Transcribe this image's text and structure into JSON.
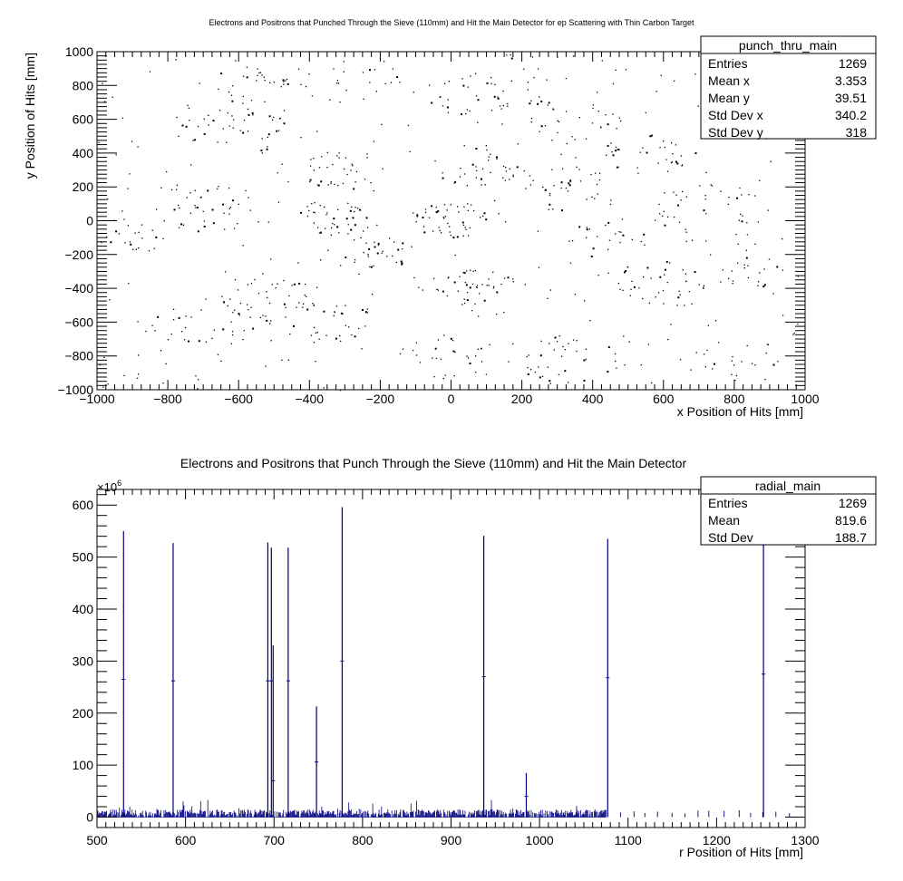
{
  "chart_data": [
    {
      "type": "scatter",
      "title": "Electrons and Positrons that Punched Through the Sieve (110mm) and Hit the Main Detector for ep Scattering with Thin Carbon Target",
      "xlabel": "x Position of Hits [mm]",
      "ylabel": "y Position of Hits [mm]",
      "xlim": [
        -1000,
        1000
      ],
      "ylim": [
        -1000,
        1000
      ],
      "x_ticks": [
        "-1000",
        "-800",
        "-600",
        "-400",
        "-200",
        "0",
        "200",
        "400",
        "600",
        "800",
        "1000"
      ],
      "y_ticks": [
        "-1000",
        "-800",
        "-600",
        "-400",
        "-200",
        "0",
        "200",
        "400",
        "600",
        "800",
        "1000"
      ],
      "grid": false,
      "stats": {
        "name": "punch_thru_main",
        "rows": [
          {
            "label": "Entries",
            "value": "1269"
          },
          {
            "label": "Mean x",
            "value": "3.353"
          },
          {
            "label": "Mean y",
            "value": "39.51"
          },
          {
            "label": "Std Dev x",
            "value": "340.2"
          },
          {
            "label": "Std Dev y",
            "value": "318"
          }
        ]
      },
      "clusters": [
        {
          "cx": -300,
          "cy": 300,
          "r": 120,
          "n": 35
        },
        {
          "cx": -330,
          "cy": 20,
          "r": 110,
          "n": 40
        },
        {
          "cx": 0,
          "cy": 10,
          "r": 110,
          "n": 45
        },
        {
          "cx": 60,
          "cy": -370,
          "r": 120,
          "n": 40
        },
        {
          "cx": 80,
          "cy": 330,
          "r": 130,
          "n": 35
        },
        {
          "cx": 60,
          "cy": 760,
          "r": 140,
          "n": 30
        },
        {
          "cx": -520,
          "cy": -450,
          "r": 140,
          "n": 40
        },
        {
          "cx": -700,
          "cy": 80,
          "r": 140,
          "n": 35
        },
        {
          "cx": -600,
          "cy": 560,
          "r": 170,
          "n": 40
        },
        {
          "cx": -560,
          "cy": 800,
          "r": 120,
          "n": 25
        },
        {
          "cx": 330,
          "cy": 600,
          "r": 150,
          "n": 30
        },
        {
          "cx": 330,
          "cy": -820,
          "r": 150,
          "n": 35
        },
        {
          "cx": 330,
          "cy": 180,
          "r": 150,
          "n": 30
        },
        {
          "cx": 560,
          "cy": 410,
          "r": 130,
          "n": 30
        },
        {
          "cx": 600,
          "cy": -380,
          "r": 150,
          "n": 40
        },
        {
          "cx": 730,
          "cy": 50,
          "r": 170,
          "n": 35
        },
        {
          "cx": -220,
          "cy": -200,
          "r": 120,
          "n": 30
        },
        {
          "cx": -350,
          "cy": -600,
          "r": 140,
          "n": 30
        },
        {
          "cx": -700,
          "cy": -600,
          "r": 150,
          "n": 30
        },
        {
          "cx": -900,
          "cy": -100,
          "r": 90,
          "n": 20
        },
        {
          "cx": 850,
          "cy": -300,
          "r": 100,
          "n": 20
        },
        {
          "cx": 0,
          "cy": -800,
          "r": 150,
          "n": 25
        },
        {
          "cx": -300,
          "cy": 850,
          "r": 150,
          "n": 20
        },
        {
          "cx": 450,
          "cy": -100,
          "r": 120,
          "n": 20
        },
        {
          "cx": 200,
          "cy": 900,
          "r": 150,
          "n": 15
        },
        {
          "cx": 800,
          "cy": 700,
          "r": 120,
          "n": 15
        },
        {
          "cx": 800,
          "cy": -800,
          "r": 120,
          "n": 15
        }
      ]
    },
    {
      "type": "bar",
      "title": "Electrons and Positrons that Punch Through the Sieve (110mm) and Hit the Main Detector",
      "xlabel": "r Position of Hits [mm]",
      "ylabel": "",
      "y_multiplier": "×10",
      "y_multiplier_exp": "6",
      "xlim": [
        500,
        1300
      ],
      "ylim": [
        -20,
        630
      ],
      "x_ticks": [
        "500",
        "600",
        "700",
        "800",
        "900",
        "1000",
        "1100",
        "1200",
        "1300"
      ],
      "y_ticks": [
        "0",
        "100",
        "200",
        "300",
        "400",
        "500",
        "600"
      ],
      "color": "#000080",
      "grid": false,
      "stats": {
        "name": "radial_main",
        "rows": [
          {
            "label": "Entries",
            "value": "1269"
          },
          {
            "label": "Mean",
            "value": "819.6"
          },
          {
            "label": "Std Dev",
            "value": "188.7"
          }
        ]
      },
      "spikes": [
        {
          "x": 530,
          "value": 550,
          "error": 265
        },
        {
          "x": 586,
          "value": 527,
          "error": 262
        },
        {
          "x": 693,
          "value": 528,
          "error": 262
        },
        {
          "x": 697,
          "value": 518,
          "error": 262
        },
        {
          "x": 699,
          "value": 330,
          "error": 70
        },
        {
          "x": 716,
          "value": 518,
          "error": 262
        },
        {
          "x": 748,
          "value": 213,
          "error": 106
        },
        {
          "x": 777,
          "value": 596,
          "error": 300
        },
        {
          "x": 937,
          "value": 541,
          "error": 270
        },
        {
          "x": 985,
          "value": 85,
          "error": 40
        },
        {
          "x": 1077,
          "value": 535,
          "error": 268
        },
        {
          "x": 1253,
          "value": 545,
          "error": 275
        }
      ],
      "baseline": {
        "xrange": [
          500,
          1075
        ],
        "max": 22,
        "typical": 10,
        "sparse_xrange": [
          1075,
          1290
        ]
      }
    }
  ]
}
